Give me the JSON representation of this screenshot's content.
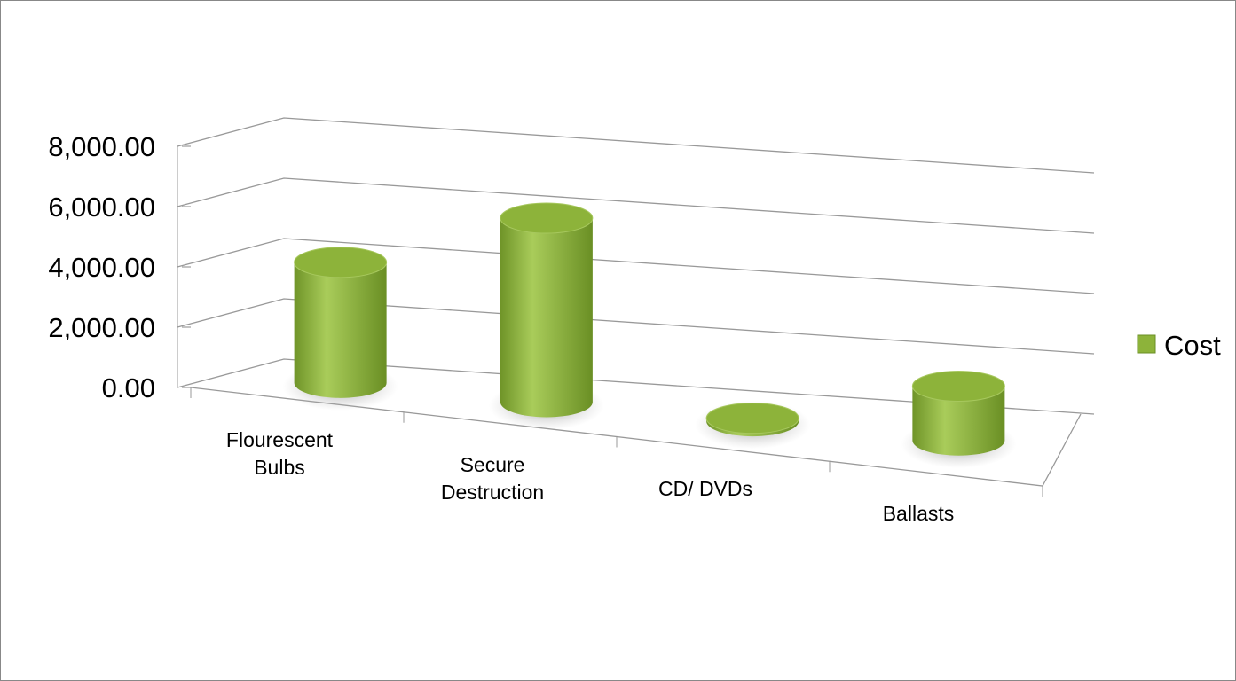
{
  "chart_data": {
    "type": "bar3d",
    "categories": [
      "Flourescent Bulbs",
      "Secure Destruction",
      "CD/ DVDs",
      "Ballasts"
    ],
    "series": [
      {
        "name": "Cost",
        "color": "#8db33a",
        "values": [
          4000,
          6100,
          100,
          1800
        ]
      }
    ],
    "ylim": [
      0,
      8000
    ],
    "yticks": [
      {
        "value": 0,
        "label": "0.00"
      },
      {
        "value": 2000,
        "label": "2,000.00"
      },
      {
        "value": 4000,
        "label": "4,000.00"
      },
      {
        "value": 6000,
        "label": "6,000.00"
      },
      {
        "value": 8000,
        "label": "8,000.00"
      }
    ],
    "grid": true,
    "legend": "right"
  }
}
